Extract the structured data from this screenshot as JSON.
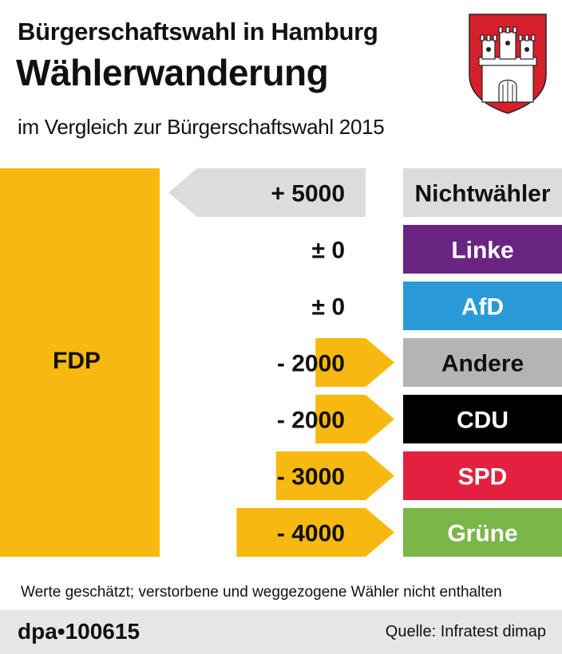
{
  "header": {
    "title": "Bürgerschaftswahl in Hamburg",
    "headline": "Wählerwanderung",
    "subtitle": "im Vergleich zur Bürgerschaftswahl 2015"
  },
  "crest": {
    "name": "hamburg-coat-of-arms",
    "field_color": "#d6202b",
    "castle_color": "#ffffff"
  },
  "chart_data": {
    "type": "bar",
    "party": "FDP",
    "categories": [
      "Nichtwähler",
      "Linke",
      "AfD",
      "Andere",
      "CDU",
      "SPD",
      "Grüne"
    ],
    "values": [
      5000,
      0,
      0,
      -2000,
      -2000,
      -3000,
      -4000
    ],
    "labels": [
      "+ 5000",
      "± 0",
      "± 0",
      "- 2000",
      "- 2000",
      "- 3000",
      "- 4000"
    ],
    "category_colors": [
      "#dcdcdc",
      "#6a2482",
      "#2a9ad6",
      "#b4b4b4",
      "#000000",
      "#e1213f",
      "#7ab648"
    ],
    "category_text_colors": [
      "#111111",
      "#ffffff",
      "#ffffff",
      "#111111",
      "#ffffff",
      "#ffffff",
      "#ffffff"
    ],
    "gain_color": "#dcdcdc",
    "loss_color": "#f7b90f",
    "party_color": "#f7b90f"
  },
  "footnote": "Werte geschätzt; verstorbene und weggezogene Wähler nicht enthalten",
  "footer": {
    "agency": "dpa",
    "id": "100615",
    "source": "Quelle: Infratest dimap"
  }
}
